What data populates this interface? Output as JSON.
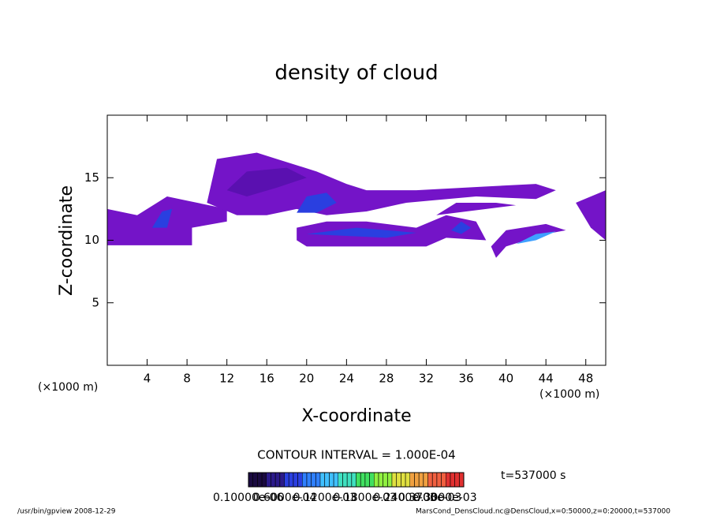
{
  "chart_data": {
    "type": "contour",
    "title": "density of cloud",
    "x_label": "X-coordinate",
    "y_label": "Z-coordinate",
    "x_unit": "(×1000 m)",
    "y_unit": "(×1000 m)",
    "xlim": [
      0,
      50
    ],
    "ylim": [
      0,
      20
    ],
    "xticks": [
      4,
      8,
      12,
      16,
      20,
      24,
      28,
      32,
      36,
      40,
      44,
      48
    ],
    "yticks": [
      5,
      10,
      15
    ],
    "contour_interval": "CONTOUR INTERVAL = 1.000E-04",
    "time_label": "t=537000 s",
    "colorbar_colors": [
      "#1a0a40",
      "#2b1a8a",
      "#2a3fe0",
      "#2f80ff",
      "#40c0ff",
      "#40e0c0",
      "#40e060",
      "#90f040",
      "#e0e040",
      "#f0a040",
      "#f06040",
      "#e03030"
    ],
    "colorbar_labels": [
      "0.10000e-06",
      "0.6000e-04",
      "0.1200e-03",
      "0.1800e-03",
      "0.2400e-03",
      "0.3000e-03",
      "0.3700e-03"
    ],
    "footer_left": "/usr/bin/gpview   2008-12-29",
    "footer_right": "MarsCond_DensCloud.nc@DensCloud,x=0:50000,z=0:20000,t=537000",
    "regions": [
      {
        "color": "#7414c8",
        "x": [
          0,
          8.5,
          8.5,
          12,
          12,
          6,
          3,
          0
        ],
        "y": [
          9.6,
          9.6,
          11,
          11.5,
          12.5,
          13.5,
          12,
          12.5
        ]
      },
      {
        "color": "#7414c8",
        "x": [
          10,
          11,
          15,
          17,
          21,
          24,
          26,
          31,
          38,
          43,
          45,
          43,
          37,
          30,
          26,
          22,
          19,
          16,
          13
        ],
        "y": [
          13,
          16.5,
          17,
          16.5,
          15.5,
          14.5,
          14,
          14,
          14.3,
          14.5,
          14,
          13.3,
          13.5,
          13,
          12.3,
          12,
          12.5,
          12,
          12
        ]
      },
      {
        "color": "#7414c8",
        "x": [
          19,
          20,
          32,
          34,
          38,
          37,
          34,
          31,
          26,
          22,
          19
        ],
        "y": [
          10,
          9.5,
          9.5,
          10.2,
          10,
          11.5,
          12,
          11,
          11.5,
          11.5,
          11
        ]
      },
      {
        "color": "#7414c8",
        "x": [
          39,
          40,
          44,
          46,
          44,
          40,
          38.5
        ],
        "y": [
          8.6,
          9.5,
          10.5,
          10.8,
          11.3,
          10.8,
          9.5
        ]
      },
      {
        "color": "#7414c8",
        "x": [
          47,
          50,
          50,
          48.5
        ],
        "y": [
          13,
          14,
          10,
          11
        ]
      },
      {
        "color": "#7414c8",
        "x": [
          33,
          35,
          39,
          41,
          38
        ],
        "y": [
          12,
          13,
          13,
          12.8,
          12.5
        ]
      },
      {
        "color": "#5a10b0",
        "x": [
          12,
          14,
          18,
          20,
          17,
          14
        ],
        "y": [
          14,
          15.5,
          15.8,
          15,
          14.2,
          13.5
        ]
      },
      {
        "color": "#2a3fe0",
        "x": [
          4.5,
          5.5,
          6.5,
          6
        ],
        "y": [
          11,
          12.3,
          12.5,
          11
        ]
      },
      {
        "color": "#2a3fe0",
        "x": [
          19,
          20,
          22,
          23,
          21
        ],
        "y": [
          12.2,
          13.5,
          13.8,
          13,
          12.2
        ]
      },
      {
        "color": "#2a3fe0",
        "x": [
          20,
          25,
          31,
          28
        ],
        "y": [
          10.5,
          11,
          10.6,
          10.2
        ]
      },
      {
        "color": "#2a3fe0",
        "x": [
          34.5,
          35.5,
          36.5,
          35.5
        ],
        "y": [
          10.8,
          11.5,
          11,
          10.5
        ]
      },
      {
        "color": "#3fa0ff",
        "x": [
          41,
          43,
          45,
          43
        ],
        "y": [
          9.7,
          10.5,
          10.7,
          10
        ]
      }
    ]
  }
}
